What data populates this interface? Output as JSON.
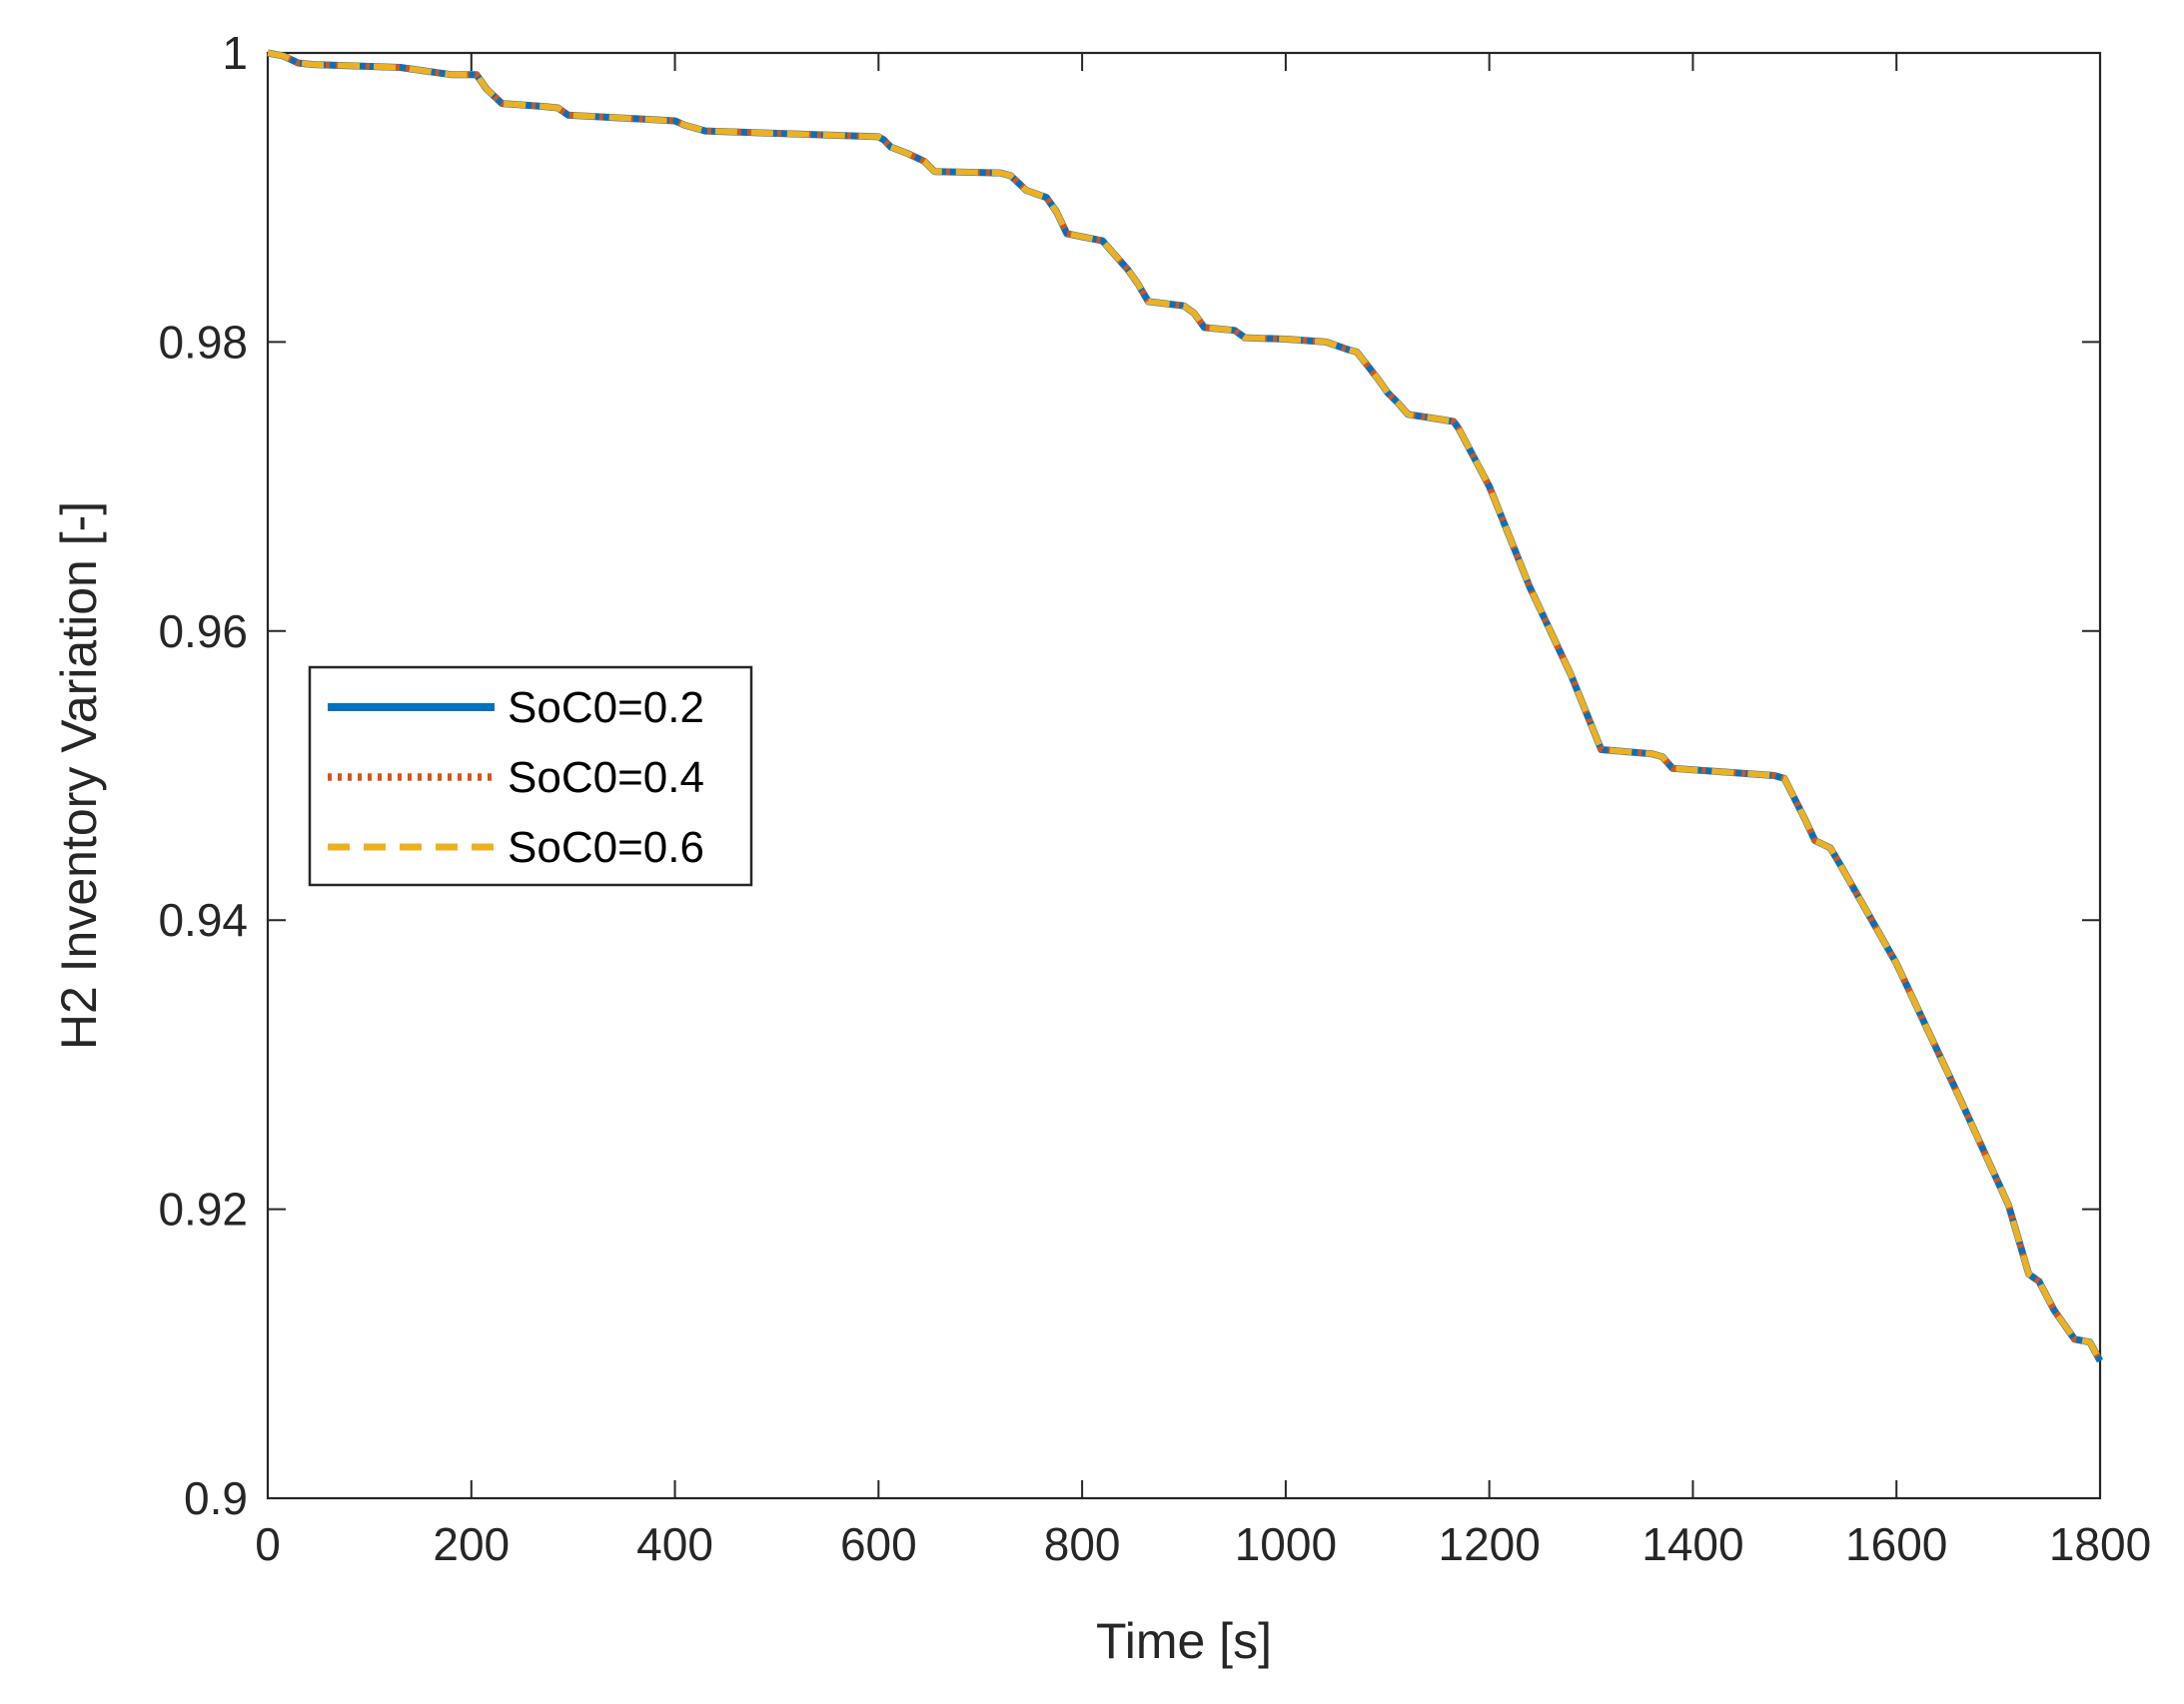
{
  "chart_data": {
    "type": "line",
    "xlabel": "Time [s]",
    "ylabel": "H2 Inventory Variation [-]",
    "xlim": [
      0,
      1800
    ],
    "ylim": [
      0.9,
      1.0
    ],
    "xticks": [
      0,
      200,
      400,
      600,
      800,
      1000,
      1200,
      1400,
      1600,
      1800
    ],
    "yticks": [
      0.9,
      0.92,
      0.94,
      0.96,
      0.98,
      1.0
    ],
    "xtick_labels": [
      "0",
      "200",
      "400",
      "600",
      "800",
      "1000",
      "1200",
      "1400",
      "1600",
      "1800"
    ],
    "ytick_labels": [
      "0.9",
      "0.92",
      "0.94",
      "0.96",
      "0.98",
      "1"
    ],
    "grid": false,
    "legend_position": "left",
    "x": [
      0,
      15,
      30,
      45,
      130,
      150,
      180,
      205,
      215,
      230,
      270,
      285,
      295,
      400,
      410,
      420,
      430,
      600,
      605,
      612,
      630,
      645,
      655,
      720,
      730,
      745,
      765,
      775,
      785,
      820,
      830,
      845,
      855,
      865,
      900,
      910,
      920,
      950,
      960,
      1000,
      1040,
      1060,
      1070,
      1090,
      1100,
      1110,
      1120,
      1165,
      1170,
      1200,
      1240,
      1280,
      1310,
      1360,
      1370,
      1380,
      1480,
      1490,
      1510,
      1520,
      1535,
      1545,
      1600,
      1660,
      1710,
      1730,
      1740,
      1755,
      1775,
      1790,
      1800
    ],
    "series": [
      {
        "name": "SoC0=0.2",
        "color": "#0072BD",
        "style": "solid",
        "values": [
          1.0,
          0.9998,
          0.9993,
          0.9992,
          0.999,
          0.9988,
          0.9985,
          0.9985,
          0.9975,
          0.9965,
          0.9963,
          0.9962,
          0.9957,
          0.9953,
          0.995,
          0.9948,
          0.9946,
          0.9942,
          0.994,
          0.9935,
          0.993,
          0.9925,
          0.9918,
          0.9917,
          0.9915,
          0.9905,
          0.99,
          0.989,
          0.9875,
          0.987,
          0.9862,
          0.985,
          0.984,
          0.9828,
          0.9825,
          0.982,
          0.981,
          0.9808,
          0.9803,
          0.9802,
          0.98,
          0.9795,
          0.9793,
          0.9775,
          0.9765,
          0.9758,
          0.975,
          0.9745,
          0.974,
          0.97,
          0.963,
          0.957,
          0.9518,
          0.9515,
          0.9513,
          0.9505,
          0.95,
          0.9498,
          0.947,
          0.9455,
          0.945,
          0.9438,
          0.937,
          0.928,
          0.9203,
          0.9155,
          0.915,
          0.913,
          0.911,
          0.9108,
          0.9095
        ]
      },
      {
        "name": "SoC0=0.4",
        "color": "#D95319",
        "style": "dotted",
        "values": [
          1.0,
          0.9998,
          0.9993,
          0.9992,
          0.999,
          0.9988,
          0.9985,
          0.9985,
          0.9975,
          0.9965,
          0.9963,
          0.9962,
          0.9957,
          0.9953,
          0.995,
          0.9948,
          0.9946,
          0.9942,
          0.994,
          0.9935,
          0.993,
          0.9925,
          0.9918,
          0.9917,
          0.9915,
          0.9905,
          0.99,
          0.989,
          0.9875,
          0.987,
          0.9862,
          0.985,
          0.984,
          0.9828,
          0.9825,
          0.982,
          0.981,
          0.9808,
          0.9803,
          0.9802,
          0.98,
          0.9795,
          0.9793,
          0.9775,
          0.9765,
          0.9758,
          0.975,
          0.9745,
          0.974,
          0.97,
          0.963,
          0.957,
          0.9518,
          0.9515,
          0.9513,
          0.9505,
          0.95,
          0.9498,
          0.947,
          0.9455,
          0.945,
          0.9438,
          0.937,
          0.928,
          0.9203,
          0.9155,
          0.915,
          0.913,
          0.911,
          0.9108,
          0.9095
        ]
      },
      {
        "name": "SoC0=0.6",
        "color": "#EDB120",
        "style": "dashed",
        "values": [
          1.0,
          0.9998,
          0.9993,
          0.9992,
          0.999,
          0.9988,
          0.9985,
          0.9985,
          0.9975,
          0.9965,
          0.9963,
          0.9962,
          0.9957,
          0.9953,
          0.995,
          0.9948,
          0.9946,
          0.9942,
          0.994,
          0.9935,
          0.993,
          0.9925,
          0.9918,
          0.9917,
          0.9915,
          0.9905,
          0.99,
          0.989,
          0.9875,
          0.987,
          0.9862,
          0.985,
          0.984,
          0.9828,
          0.9825,
          0.982,
          0.981,
          0.9808,
          0.9803,
          0.9802,
          0.98,
          0.9795,
          0.9793,
          0.9775,
          0.9765,
          0.9758,
          0.975,
          0.9745,
          0.974,
          0.97,
          0.963,
          0.957,
          0.9518,
          0.9515,
          0.9513,
          0.9505,
          0.95,
          0.9498,
          0.947,
          0.9455,
          0.945,
          0.9438,
          0.937,
          0.928,
          0.9203,
          0.9155,
          0.915,
          0.913,
          0.911,
          0.9108,
          0.9095
        ]
      }
    ]
  }
}
